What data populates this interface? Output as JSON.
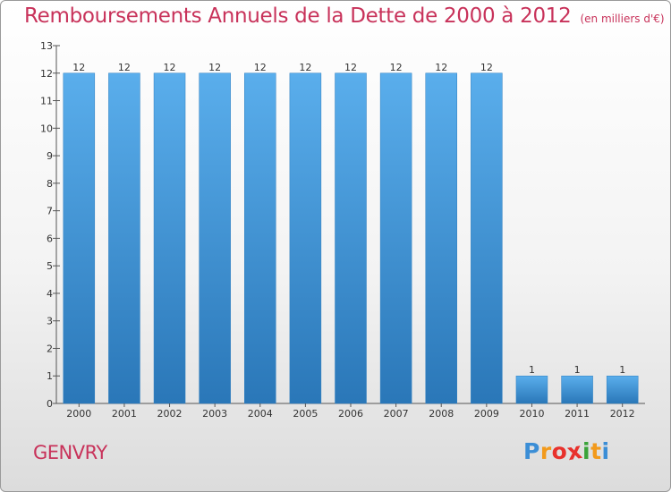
{
  "chart_data": {
    "type": "bar",
    "title": "Remboursements Annuels de la Dette de 2000 à 2012",
    "subtitle": "(en milliers d'€)",
    "categories": [
      "2000",
      "2001",
      "2002",
      "2003",
      "2004",
      "2005",
      "2006",
      "2007",
      "2008",
      "2009",
      "2010",
      "2011",
      "2012"
    ],
    "values": [
      12,
      12,
      12,
      12,
      12,
      12,
      12,
      12,
      12,
      12,
      1,
      1,
      1
    ],
    "data_labels": [
      "12",
      "12",
      "12",
      "12",
      "12",
      "12",
      "12",
      "12",
      "12",
      "12",
      "1",
      "1",
      "1"
    ],
    "ylim": [
      0,
      13
    ],
    "yticks": [
      0,
      1,
      2,
      3,
      4,
      5,
      6,
      7,
      8,
      9,
      10,
      11,
      12,
      13
    ],
    "xlabel": "",
    "ylabel": "",
    "grid": false,
    "bar_color": "#3f8fd2"
  },
  "footer": {
    "commune": "GENVRY",
    "logo_letters": [
      "P",
      "r",
      "o",
      "x",
      "i",
      "t",
      "i"
    ],
    "logo_colors": [
      "#3b8ed6",
      "#f29a1c",
      "#e8312c",
      "#e8312c",
      "#3aa33a",
      "#f29a1c",
      "#3b8ed6"
    ]
  },
  "colors": {
    "title": "#c8325a",
    "commune": "#c8325a"
  }
}
